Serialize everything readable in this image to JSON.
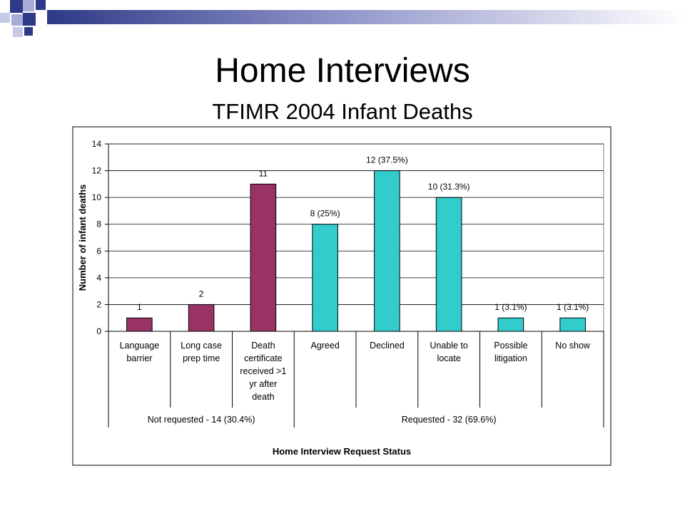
{
  "slide": {
    "title": "Home Interviews",
    "subtitle": "TFIMR 2004 Infant Deaths"
  },
  "colors": {
    "accent_navy": "#2E3A87",
    "accent_lavender": "#A8ACD8",
    "not_requested": "#993366",
    "requested": "#33CCCC"
  },
  "chart_data": {
    "type": "bar",
    "title": "",
    "xlabel": "Home Interview Request Status",
    "ylabel": "Number of infant deaths",
    "ylim": [
      0,
      14
    ],
    "yticks": [
      0,
      2,
      4,
      6,
      8,
      10,
      12,
      14
    ],
    "grid": true,
    "categories": [
      [
        "Language",
        "barrier"
      ],
      [
        "Long case",
        "prep  time"
      ],
      [
        "Death",
        "certificate",
        "received >1",
        "yr after",
        "death"
      ],
      [
        "Agreed"
      ],
      [
        "Declined"
      ],
      [
        "Unable to",
        "locate"
      ],
      [
        "Possible",
        "litigation"
      ],
      [
        "No show"
      ]
    ],
    "values": [
      1,
      2,
      11,
      8,
      12,
      10,
      1,
      1
    ],
    "data_labels": [
      "1",
      "2",
      "11",
      "8 (25%)",
      "12 (37.5%)",
      "10 (31.3%)",
      "1 (3.1%)",
      "1 (3.1%)"
    ],
    "bar_groups": [
      "not_requested",
      "not_requested",
      "not_requested",
      "requested",
      "requested",
      "requested",
      "requested",
      "requested"
    ],
    "groups": [
      {
        "key": "not_requested",
        "label": "Not requested - 14 (30.4%)",
        "start": 0,
        "end": 2
      },
      {
        "key": "requested",
        "label": "Requested - 32 (69.6%)",
        "start": 3,
        "end": 7
      }
    ]
  }
}
